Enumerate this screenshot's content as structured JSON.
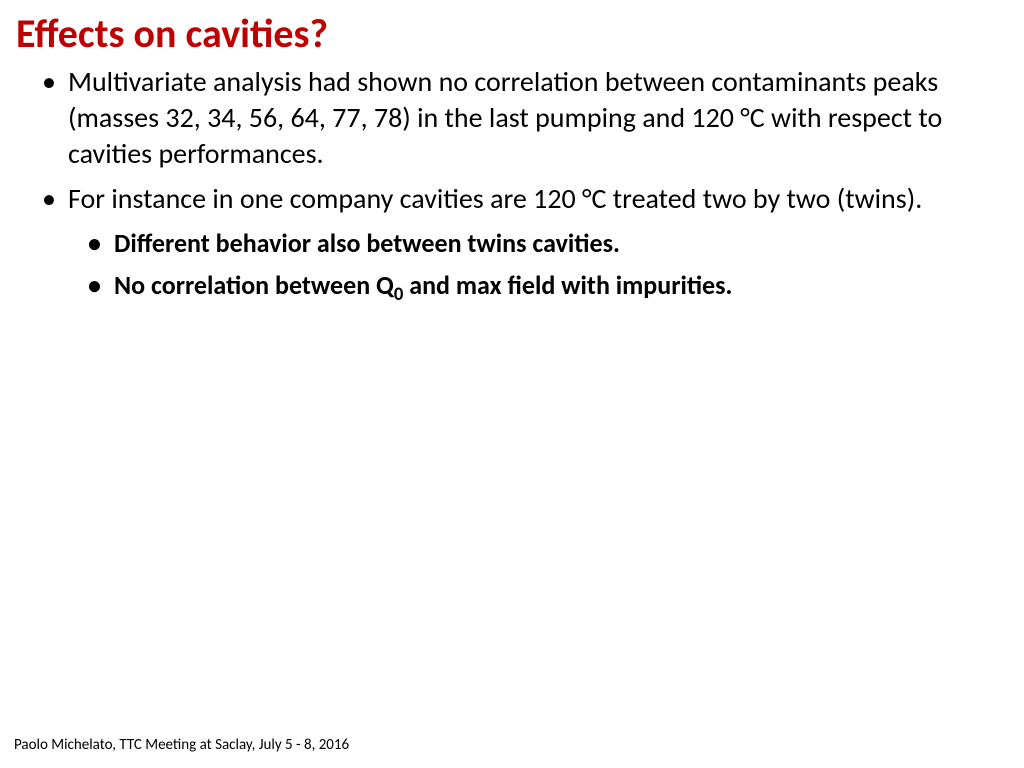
{
  "title": "Effects on cavities?",
  "title_color": "#c00000",
  "title_fontsize": 40,
  "body_color": "#000000",
  "body_fontsize_l1": 28,
  "body_fontsize_l2": 26,
  "background_color": "#ffffff",
  "bullets": {
    "b1": "Multivariate analysis had shown no correlation between contaminants peaks (masses 32, 34, 56, 64, 77, 78)  in the last pumping and 120 °C with respect to cavities performances.",
    "b2": "For instance in one company cavities are 120 °C treated two by two (twins).",
    "sub1": "Different behavior also between twins cavities.",
    "sub2_pre": "No correlation between Q",
    "sub2_sub": "0",
    "sub2_post": " and max field with impurities."
  },
  "footer": "Paolo Michelato, TTC Meeting at Saclay, July 5 - 8, 2016",
  "footer_fontsize": 15
}
